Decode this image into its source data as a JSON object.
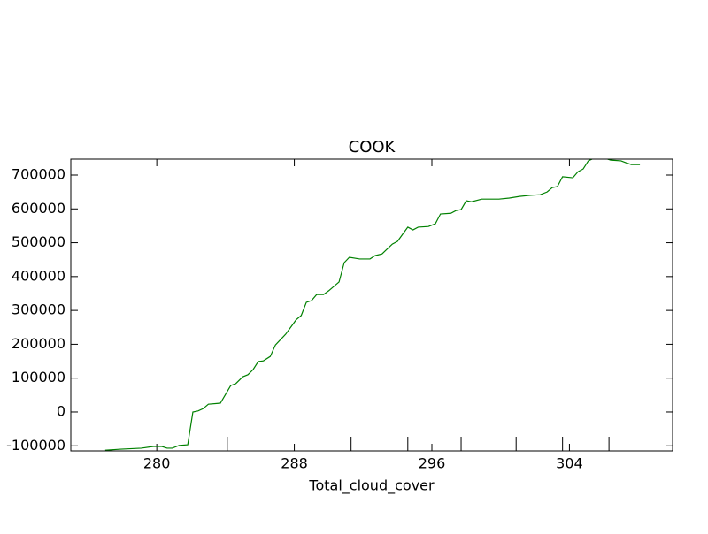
{
  "chart_data": {
    "type": "line",
    "title": "COOK",
    "xlabel": "Total_cloud_cover",
    "x": [
      277.0,
      277.9,
      279.1,
      279.8,
      280.3,
      280.6,
      280.9,
      281.3,
      281.8,
      282.1,
      282.4,
      282.7,
      283.0,
      283.7,
      284.0,
      284.3,
      284.6,
      285.0,
      285.3,
      285.6,
      285.9,
      286.2,
      286.6,
      286.9,
      287.5,
      288.1,
      288.4,
      288.7,
      289.0,
      289.3,
      289.7,
      290.0,
      290.6,
      290.9,
      291.2,
      291.8,
      292.4,
      292.7,
      293.1,
      293.7,
      294.0,
      294.6,
      294.9,
      295.2,
      295.8,
      296.2,
      296.5,
      297.1,
      297.4,
      297.7,
      298.0,
      298.3,
      298.9,
      299.9,
      300.5,
      301.1,
      301.7,
      302.3,
      302.7,
      303.0,
      303.3,
      303.6,
      304.2,
      304.5,
      304.8,
      305.1,
      305.4,
      306.1,
      306.4,
      307.0,
      307.3,
      307.6,
      308.1
    ],
    "series": [
      {
        "name": "COOK",
        "color": "#008000",
        "values": [
          -113000,
          -110000,
          -107000,
          -102000,
          -102000,
          -107000,
          -107000,
          -99000,
          -97000,
          0,
          3000,
          10000,
          23000,
          26000,
          52000,
          78000,
          84000,
          104000,
          110000,
          125000,
          149000,
          151000,
          164000,
          198000,
          230000,
          272000,
          285000,
          324000,
          329000,
          347000,
          347000,
          358000,
          384000,
          441000,
          457000,
          452000,
          452000,
          462000,
          467000,
          496000,
          504000,
          546000,
          538000,
          546000,
          548000,
          556000,
          585000,
          587000,
          595000,
          598000,
          624000,
          621000,
          629000,
          629000,
          632000,
          637000,
          640000,
          642000,
          650000,
          663000,
          666000,
          695000,
          692000,
          710000,
          718000,
          742000,
          749000,
          749000,
          744000,
          742000,
          736000,
          731000,
          731000
        ]
      }
    ],
    "xlim": [
      275,
      310
    ],
    "xticks": [
      280,
      288,
      296,
      304
    ],
    "xminorticks": [
      284.1,
      291.3,
      294.6,
      297.7,
      300.9,
      303.6,
      306.3
    ],
    "ylim": [
      -115000,
      747000
    ],
    "yticks": [
      -100000,
      0,
      100000,
      200000,
      300000,
      400000,
      500000,
      600000,
      700000
    ]
  }
}
